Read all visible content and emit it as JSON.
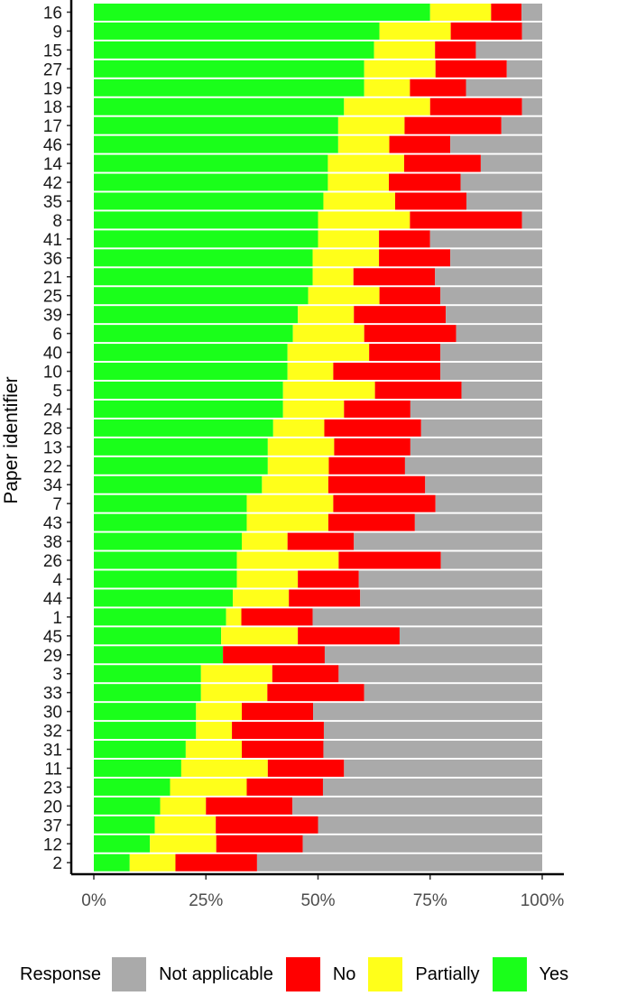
{
  "chart_data": {
    "type": "bar",
    "orientation": "horizontal",
    "stacked": true,
    "ylabel": "Paper identifier",
    "xlabel": "",
    "xlim": [
      0,
      1
    ],
    "x_ticks": [
      "0%",
      "25%",
      "50%",
      "75%",
      "100%"
    ],
    "categories": [
      "16",
      "9",
      "15",
      "27",
      "19",
      "18",
      "17",
      "46",
      "14",
      "42",
      "35",
      "8",
      "41",
      "36",
      "21",
      "25",
      "39",
      "6",
      "40",
      "10",
      "5",
      "24",
      "28",
      "13",
      "22",
      "34",
      "7",
      "43",
      "38",
      "26",
      "4",
      "44",
      "1",
      "45",
      "29",
      "3",
      "33",
      "30",
      "32",
      "31",
      "11",
      "23",
      "20",
      "37",
      "12",
      "2"
    ],
    "series": [
      {
        "name": "Yes",
        "color": "#1aff1a",
        "values": [
          0.75,
          0.637,
          0.625,
          0.603,
          0.603,
          0.558,
          0.545,
          0.545,
          0.522,
          0.522,
          0.512,
          0.5,
          0.5,
          0.488,
          0.488,
          0.478,
          0.455,
          0.444,
          0.432,
          0.432,
          0.422,
          0.422,
          0.4,
          0.388,
          0.388,
          0.375,
          0.341,
          0.341,
          0.33,
          0.319,
          0.319,
          0.31,
          0.295,
          0.284,
          0.288,
          0.239,
          0.239,
          0.228,
          0.228,
          0.205,
          0.195,
          0.17,
          0.148,
          0.136,
          0.125,
          0.08
        ]
      },
      {
        "name": "Partially",
        "color": "#ffff1a",
        "values": [
          0.136,
          0.159,
          0.136,
          0.159,
          0.102,
          0.192,
          0.148,
          0.114,
          0.17,
          0.136,
          0.16,
          0.205,
          0.136,
          0.148,
          0.091,
          0.159,
          0.125,
          0.159,
          0.182,
          0.102,
          0.205,
          0.136,
          0.114,
          0.148,
          0.136,
          0.148,
          0.193,
          0.182,
          0.102,
          0.227,
          0.136,
          0.125,
          0.034,
          0.171,
          0.0,
          0.159,
          0.148,
          0.102,
          0.08,
          0.125,
          0.193,
          0.171,
          0.102,
          0.136,
          0.148,
          0.102
        ]
      },
      {
        "name": "No",
        "color": "#ff0000",
        "values": [
          0.068,
          0.159,
          0.091,
          0.159,
          0.125,
          0.205,
          0.216,
          0.136,
          0.171,
          0.16,
          0.159,
          0.25,
          0.114,
          0.159,
          0.182,
          0.136,
          0.205,
          0.205,
          0.159,
          0.239,
          0.193,
          0.148,
          0.216,
          0.17,
          0.17,
          0.216,
          0.228,
          0.193,
          0.148,
          0.228,
          0.136,
          0.159,
          0.159,
          0.227,
          0.227,
          0.148,
          0.216,
          0.159,
          0.205,
          0.182,
          0.17,
          0.17,
          0.193,
          0.228,
          0.193,
          0.182
        ]
      },
      {
        "name": "Not applicable",
        "color": "#aaaaaa",
        "values": [
          0.046,
          0.045,
          0.148,
          0.079,
          0.17,
          0.045,
          0.091,
          0.205,
          0.137,
          0.182,
          0.169,
          0.045,
          0.25,
          0.205,
          0.239,
          0.227,
          0.215,
          0.192,
          0.227,
          0.227,
          0.18,
          0.294,
          0.27,
          0.294,
          0.306,
          0.261,
          0.238,
          0.284,
          0.42,
          0.226,
          0.409,
          0.406,
          0.512,
          0.318,
          0.485,
          0.454,
          0.397,
          0.511,
          0.487,
          0.488,
          0.442,
          0.489,
          0.557,
          0.5,
          0.534,
          0.636
        ]
      }
    ],
    "legend": {
      "title": "Response",
      "placement": "bottom",
      "entries": [
        {
          "label": "Not applicable",
          "color": "#aaaaaa"
        },
        {
          "label": "No",
          "color": "#ff0000"
        },
        {
          "label": "Partially",
          "color": "#ffff1a"
        },
        {
          "label": "Yes",
          "color": "#1aff1a"
        }
      ]
    },
    "grid": false
  }
}
